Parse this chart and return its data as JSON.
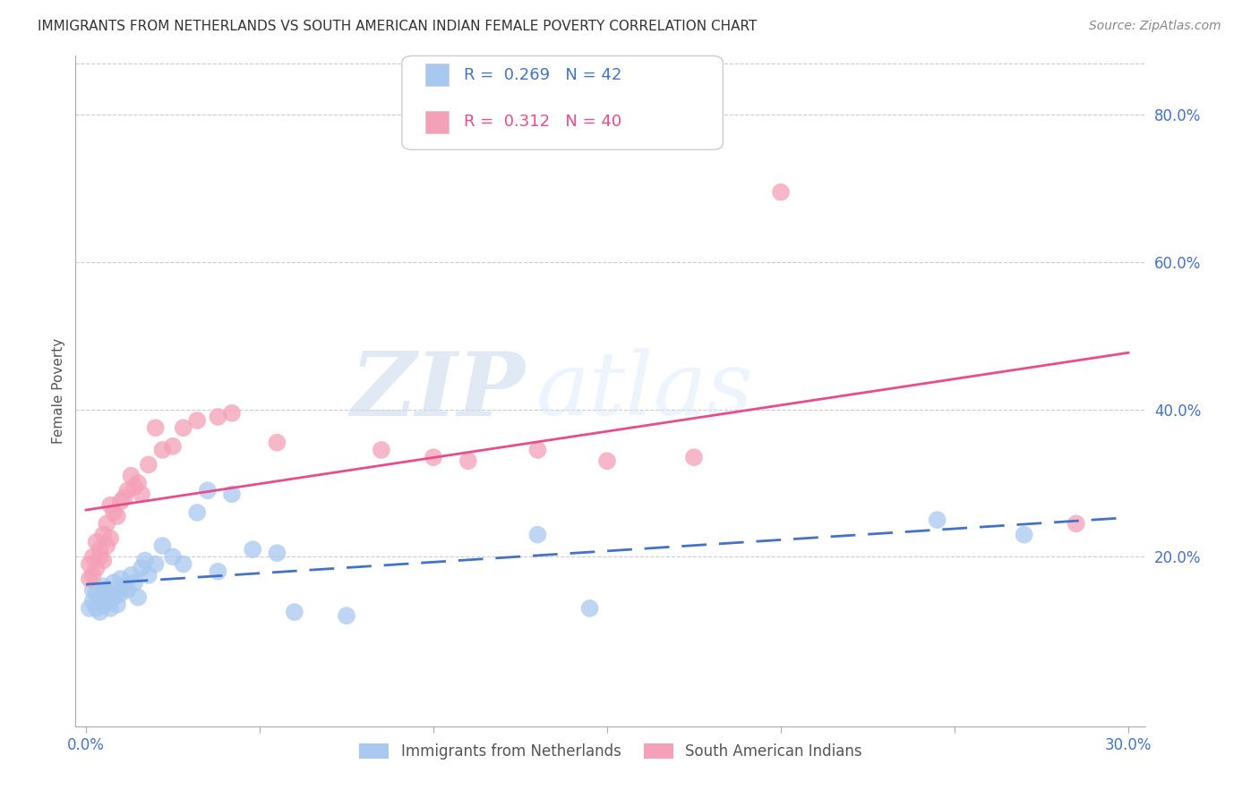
{
  "title": "IMMIGRANTS FROM NETHERLANDS VS SOUTH AMERICAN INDIAN FEMALE POVERTY CORRELATION CHART",
  "source": "Source: ZipAtlas.com",
  "ylabel": "Female Poverty",
  "xlim": [
    -0.003,
    0.305
  ],
  "ylim": [
    -0.03,
    0.88
  ],
  "xtick_positions": [
    0.0,
    0.05,
    0.1,
    0.15,
    0.2,
    0.25,
    0.3
  ],
  "xtick_labels": [
    "0.0%",
    "",
    "",
    "",
    "",
    "",
    "30.0%"
  ],
  "ytick_vals_right": [
    0.8,
    0.6,
    0.4,
    0.2
  ],
  "ytick_labels_right": [
    "80.0%",
    "60.0%",
    "40.0%",
    "20.0%"
  ],
  "legend1_label": "Immigrants from Netherlands",
  "legend2_label": "South American Indians",
  "R1": 0.269,
  "N1": 42,
  "R2": 0.312,
  "N2": 40,
  "color_blue": "#A8C8F0",
  "color_pink": "#F4A0B8",
  "color_blue_line": "#4472C4",
  "color_pink_line": "#E84C8B",
  "color_blue_text": "#4472C4",
  "color_right_axis": "#4472C4",
  "watermark_zip": "ZIP",
  "watermark_atlas": "atlas",
  "blue_scatter_x": [
    0.001,
    0.002,
    0.002,
    0.003,
    0.003,
    0.004,
    0.004,
    0.005,
    0.005,
    0.006,
    0.006,
    0.007,
    0.007,
    0.008,
    0.008,
    0.009,
    0.01,
    0.01,
    0.011,
    0.012,
    0.013,
    0.014,
    0.015,
    0.016,
    0.017,
    0.018,
    0.02,
    0.022,
    0.025,
    0.028,
    0.032,
    0.035,
    0.038,
    0.042,
    0.048,
    0.055,
    0.06,
    0.075,
    0.13,
    0.145,
    0.245,
    0.27
  ],
  "blue_scatter_y": [
    0.13,
    0.14,
    0.155,
    0.13,
    0.15,
    0.125,
    0.145,
    0.135,
    0.16,
    0.14,
    0.155,
    0.13,
    0.15,
    0.145,
    0.165,
    0.135,
    0.15,
    0.17,
    0.16,
    0.155,
    0.175,
    0.165,
    0.145,
    0.185,
    0.195,
    0.175,
    0.19,
    0.215,
    0.2,
    0.19,
    0.26,
    0.29,
    0.18,
    0.285,
    0.21,
    0.205,
    0.125,
    0.12,
    0.23,
    0.13,
    0.25,
    0.23
  ],
  "pink_scatter_x": [
    0.001,
    0.001,
    0.002,
    0.002,
    0.003,
    0.003,
    0.004,
    0.004,
    0.005,
    0.005,
    0.006,
    0.006,
    0.007,
    0.007,
    0.008,
    0.009,
    0.01,
    0.011,
    0.012,
    0.013,
    0.014,
    0.015,
    0.016,
    0.018,
    0.02,
    0.022,
    0.025,
    0.028,
    0.032,
    0.038,
    0.042,
    0.055,
    0.085,
    0.1,
    0.11,
    0.13,
    0.15,
    0.175,
    0.2,
    0.285
  ],
  "pink_scatter_y": [
    0.17,
    0.19,
    0.175,
    0.2,
    0.185,
    0.22,
    0.2,
    0.21,
    0.195,
    0.23,
    0.215,
    0.245,
    0.225,
    0.27,
    0.26,
    0.255,
    0.275,
    0.28,
    0.29,
    0.31,
    0.295,
    0.3,
    0.285,
    0.325,
    0.375,
    0.345,
    0.35,
    0.375,
    0.385,
    0.39,
    0.395,
    0.355,
    0.345,
    0.335,
    0.33,
    0.345,
    0.33,
    0.335,
    0.695,
    0.245
  ]
}
